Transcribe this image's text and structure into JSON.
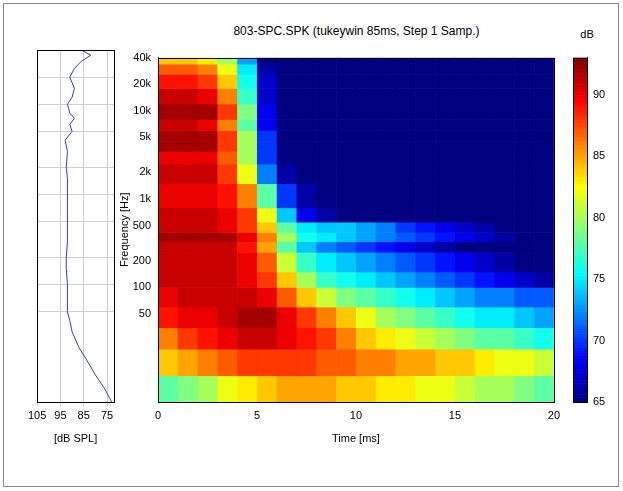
{
  "chart_data": [
    {
      "type": "line",
      "x_label": "[dB SPL]",
      "x": [
        73,
        76,
        80,
        84,
        87,
        90,
        91,
        92,
        92,
        92,
        92.5,
        92.5,
        92,
        92,
        92,
        92,
        92,
        92.5,
        92,
        93,
        90,
        91,
        89,
        91,
        92,
        90,
        89,
        91,
        89,
        86,
        82,
        86
      ],
      "y": [
        5,
        7,
        10,
        15,
        20,
        30,
        40,
        50,
        70,
        100,
        150,
        200,
        300,
        500,
        700,
        1000,
        1500,
        2000,
        3000,
        4000,
        5000,
        6000,
        7000,
        8000,
        10000,
        12000,
        15000,
        20000,
        25000,
        30000,
        35000,
        40000
      ],
      "color": "#3a3acc",
      "xlim": [
        105,
        72
      ],
      "xticks": [
        105,
        95,
        85,
        75
      ],
      "ylim": [
        5,
        40000
      ],
      "yticks": [
        50,
        100,
        200,
        500,
        {
          "value": 1000,
          "label": "1k"
        },
        {
          "value": 2000,
          "label": "2k"
        },
        {
          "value": 5000,
          "label": "5k"
        },
        {
          "value": 10000,
          "label": "10k"
        },
        {
          "value": 20000,
          "label": "20k"
        },
        {
          "value": 40000,
          "label": "40k"
        }
      ],
      "log": "y",
      "grid": true,
      "tick_labels": "x"
    },
    {
      "type": "heatmap",
      "title": "803-SPC.SPK (tukeywin 85ms, Step 1 Samp.)",
      "x_label": "Time [ms]",
      "y_label": "Frequency [Hz]",
      "x_bins": [
        0,
        1,
        2,
        3,
        4,
        5,
        6,
        7,
        8,
        9,
        10,
        11,
        12,
        13,
        14,
        15,
        16,
        17,
        18,
        19,
        20
      ],
      "y_bins": [
        5,
        10,
        20,
        35,
        60,
        100,
        150,
        250,
        330,
        420,
        550,
        800,
        1500,
        2500,
        3500,
        4500,
        6000,
        8000,
        12000,
        18000,
        26000,
        34000,
        40000
      ],
      "cells": [
        [
          78,
          79,
          80,
          82,
          83,
          84,
          85,
          85,
          85,
          84,
          84,
          83,
          83,
          82,
          82,
          81,
          80,
          80,
          79,
          78
        ],
        [
          84,
          85,
          86,
          87,
          88,
          88,
          88,
          88,
          87,
          87,
          86,
          86,
          85,
          85,
          84,
          84,
          83,
          82,
          82,
          81
        ],
        [
          86,
          88,
          89,
          90,
          91,
          91,
          90,
          89,
          88,
          86,
          84,
          83,
          82,
          81,
          80,
          79,
          78,
          78,
          77,
          76
        ],
        [
          89,
          90,
          90,
          91,
          92,
          92,
          90,
          88,
          86,
          84,
          82,
          80,
          79,
          78,
          77,
          76,
          75,
          75,
          74,
          73
        ],
        [
          90,
          91,
          91,
          91,
          91,
          90,
          87,
          84,
          81,
          79,
          78,
          77,
          76,
          75,
          74,
          73,
          72,
          72,
          71,
          71
        ],
        [
          91,
          91,
          91,
          91,
          90,
          88,
          84,
          80,
          77,
          76,
          75,
          74,
          73,
          72,
          71,
          70,
          69,
          68,
          67,
          66
        ],
        [
          91,
          91,
          91,
          91,
          90,
          87,
          81,
          77,
          75,
          74,
          73,
          72,
          71,
          70,
          69,
          68,
          67,
          66,
          65,
          65
        ],
        [
          91,
          91,
          91,
          91,
          89,
          85,
          78,
          74,
          72,
          71,
          70,
          69,
          68,
          67,
          66,
          65,
          65,
          65,
          65,
          65
        ],
        [
          92,
          92,
          92,
          92,
          90,
          86,
          80,
          76,
          75,
          74,
          73,
          72,
          71,
          70,
          69,
          68,
          67,
          66,
          65,
          65
        ],
        [
          91,
          91,
          91,
          90,
          88,
          84,
          78,
          75,
          74,
          74,
          73,
          72,
          70,
          69,
          68,
          67,
          66,
          65,
          65,
          65
        ],
        [
          91,
          91,
          91,
          90,
          88,
          82,
          74,
          68,
          66,
          65,
          65,
          65,
          65,
          65,
          65,
          65,
          65,
          65,
          65,
          65
        ],
        [
          90,
          90,
          90,
          89,
          86,
          78,
          70,
          66,
          65,
          65,
          65,
          65,
          65,
          65,
          65,
          65,
          65,
          65,
          65,
          65
        ],
        [
          91,
          91,
          91,
          88,
          82,
          72,
          66,
          65,
          65,
          65,
          65,
          65,
          65,
          65,
          65,
          65,
          65,
          65,
          65,
          65
        ],
        [
          90,
          90,
          90,
          87,
          80,
          70,
          65,
          65,
          65,
          65,
          65,
          65,
          65,
          65,
          65,
          65,
          65,
          65,
          65,
          65
        ],
        [
          92,
          92,
          92,
          88,
          80,
          70,
          65,
          65,
          65,
          65,
          65,
          65,
          65,
          65,
          65,
          65,
          65,
          65,
          65,
          65
        ],
        [
          92,
          92,
          92,
          88,
          80,
          70,
          65,
          65,
          65,
          65,
          65,
          65,
          65,
          65,
          65,
          65,
          65,
          65,
          65,
          65
        ],
        [
          91,
          91,
          90,
          86,
          78,
          68,
          65,
          65,
          65,
          65,
          65,
          65,
          65,
          65,
          65,
          65,
          65,
          65,
          65,
          65
        ],
        [
          92,
          92,
          92,
          88,
          79,
          68,
          65,
          65,
          65,
          65,
          65,
          65,
          65,
          65,
          65,
          65,
          65,
          65,
          65,
          65
        ],
        [
          91,
          91,
          90,
          86,
          77,
          67,
          65,
          65,
          65,
          65,
          65,
          65,
          65,
          65,
          65,
          65,
          65,
          65,
          65,
          65
        ],
        [
          89,
          89,
          88,
          84,
          76,
          67,
          65,
          65,
          65,
          65,
          65,
          65,
          65,
          65,
          65,
          65,
          65,
          65,
          65,
          65
        ],
        [
          87,
          87,
          86,
          82,
          75,
          66,
          65,
          65,
          65,
          65,
          65,
          65,
          65,
          65,
          65,
          65,
          65,
          65,
          65,
          65
        ],
        [
          84,
          84,
          83,
          80,
          73,
          65,
          65,
          65,
          65,
          65,
          65,
          65,
          65,
          65,
          65,
          65,
          65,
          65,
          65,
          65
        ]
      ],
      "xlim": [
        0,
        20
      ],
      "xticks": [
        0,
        5,
        10,
        15,
        20
      ],
      "ylim": [
        5,
        40000
      ],
      "yticks": [
        50,
        100,
        200,
        500,
        {
          "value": 1000,
          "label": "1k"
        },
        {
          "value": 2000,
          "label": "2k"
        },
        {
          "value": 5000,
          "label": "5k"
        },
        {
          "value": 10000,
          "label": "10k"
        },
        {
          "value": 20000,
          "label": "20k"
        },
        {
          "value": 40000,
          "label": "40k"
        }
      ],
      "log": "y",
      "grid": false,
      "colorbar": {
        "label": "dB",
        "lim": [
          65,
          93
        ],
        "ticks": [
          65,
          70,
          75,
          80,
          85,
          90
        ]
      }
    }
  ]
}
